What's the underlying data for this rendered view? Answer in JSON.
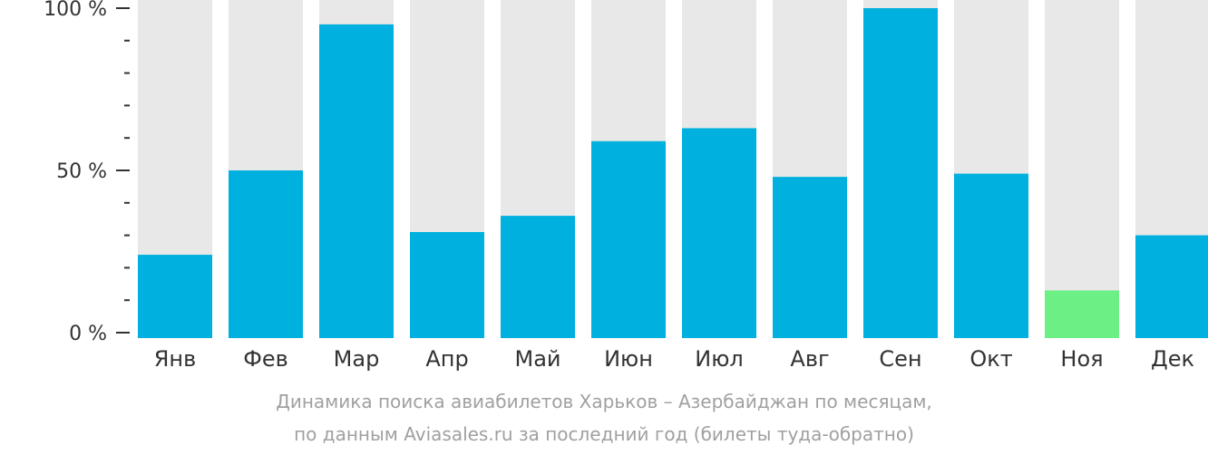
{
  "chart_data": {
    "type": "bar",
    "categories": [
      "Янв",
      "Фев",
      "Мар",
      "Апр",
      "Май",
      "Июн",
      "Июл",
      "Авг",
      "Сен",
      "Окт",
      "Ноя",
      "Дек"
    ],
    "values": [
      24,
      50,
      95,
      31,
      36,
      59,
      63,
      48,
      100,
      49,
      13,
      30
    ],
    "ylim": [
      0,
      100
    ],
    "yticks": [
      "0 %",
      "50 %",
      "100 %"
    ],
    "bar_color": "#00b0de",
    "highlight_color": "#6cf086",
    "highlight_index": 10,
    "track_color": "#e8e8e8"
  },
  "caption": {
    "line1": "Динамика поиска авиабилетов Харьков – Азербайджан по месяцам,",
    "line2": "по данным Aviasales.ru за последний год (билеты туда-обратно)"
  }
}
